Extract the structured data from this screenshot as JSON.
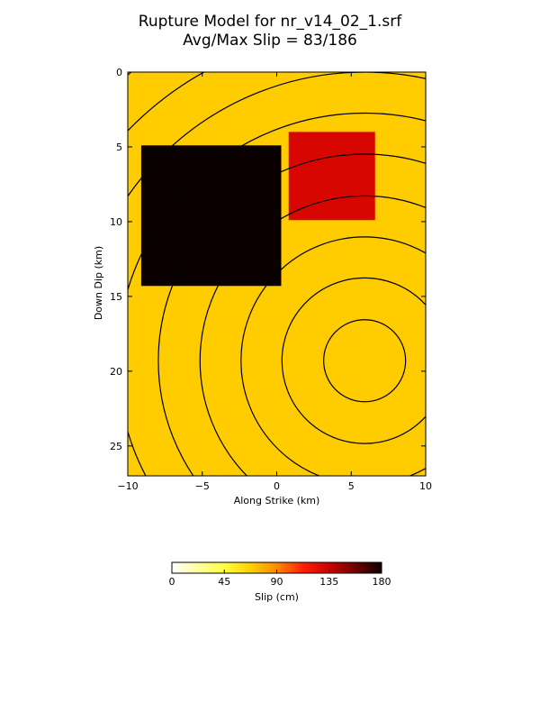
{
  "title_line1": "Rupture Model for nr_v14_02_1.srf",
  "title_line2": "Avg/Max Slip = 83/186",
  "chart_data": {
    "type": "heatmap",
    "title": "Rupture Model for nr_v14_02_1.srf\nAvg/Max Slip = 83/186",
    "xlabel": "Along Strike (km)",
    "ylabel": "Down Dip (km)",
    "xlim": [
      -10,
      10
    ],
    "ylim": [
      27,
      0
    ],
    "x_ticks": [
      -10,
      -5,
      0,
      5,
      10
    ],
    "x_tick_labels": [
      "−10",
      "−5",
      "0",
      "5",
      "10"
    ],
    "y_ticks": [
      0,
      5,
      10,
      15,
      20,
      25
    ],
    "y_tick_labels": [
      "0",
      "5",
      "10",
      "15",
      "20",
      "25"
    ],
    "background_slip": 85,
    "patches": [
      {
        "x0": -9.1,
        "x1": 0.3,
        "y0": 4.9,
        "y1": 14.3,
        "slip": 186
      },
      {
        "x0": 0.8,
        "x1": 6.6,
        "y0": 4.0,
        "y1": 9.9,
        "slip": 130
      }
    ],
    "rupture_front": {
      "hypocenter": [
        5.9,
        19.3
      ],
      "radii_km": [
        2.75,
        5.55,
        8.3,
        11.05,
        13.85,
        16.6,
        19.35,
        22.15,
        24.9
      ]
    },
    "colorbar": {
      "label": "Slip (cm)",
      "range": [
        0,
        180
      ],
      "ticks": [
        0,
        45,
        90,
        135,
        180
      ],
      "tick_labels": [
        "0",
        "45",
        "90",
        "135",
        "180"
      ],
      "colormap": "hot_r"
    }
  }
}
